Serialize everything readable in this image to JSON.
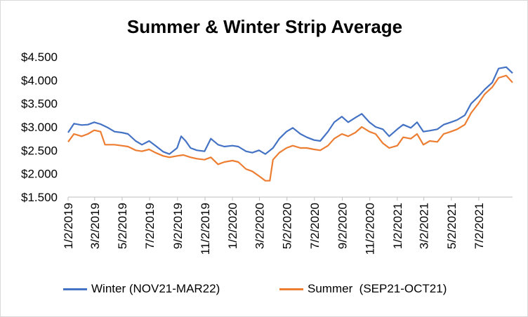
{
  "chart_data": {
    "type": "line",
    "title": "Summer & Winter Strip Average",
    "xlabel": "",
    "ylabel": "",
    "ylim": [
      1.5,
      4.5
    ],
    "yticks": [
      "$1.500",
      "$2.000",
      "$2.500",
      "$3.000",
      "$3.500",
      "$4.000",
      "$4.500"
    ],
    "xlim": [
      "2019-01-02",
      "2021-09-15"
    ],
    "xticks": [
      "1/2/2019",
      "3/2/2019",
      "5/2/2019",
      "7/2/2019",
      "9/2/2019",
      "11/2/2019",
      "1/2/2020",
      "3/2/2020",
      "5/2/2020",
      "7/2/2020",
      "9/2/2020",
      "11/2/2020",
      "1/2/2021",
      "3/2/2021",
      "5/2/2021",
      "7/2/2021"
    ],
    "grid": false,
    "legend_position": "bottom",
    "series": [
      {
        "name": "Winter (NOV21-MAR22)",
        "color": "#4472C4",
        "points": [
          [
            "2019-01-02",
            2.88
          ],
          [
            "2019-01-15",
            3.07
          ],
          [
            "2019-02-01",
            3.04
          ],
          [
            "2019-02-15",
            3.05
          ],
          [
            "2019-03-01",
            3.1
          ],
          [
            "2019-03-15",
            3.06
          ],
          [
            "2019-04-01",
            2.98
          ],
          [
            "2019-04-15",
            2.9
          ],
          [
            "2019-05-01",
            2.88
          ],
          [
            "2019-05-15",
            2.85
          ],
          [
            "2019-06-01",
            2.7
          ],
          [
            "2019-06-15",
            2.62
          ],
          [
            "2019-07-01",
            2.7
          ],
          [
            "2019-07-15",
            2.6
          ],
          [
            "2019-08-01",
            2.47
          ],
          [
            "2019-08-15",
            2.42
          ],
          [
            "2019-09-01",
            2.55
          ],
          [
            "2019-09-10",
            2.8
          ],
          [
            "2019-09-20",
            2.7
          ],
          [
            "2019-10-01",
            2.55
          ],
          [
            "2019-10-15",
            2.5
          ],
          [
            "2019-11-01",
            2.48
          ],
          [
            "2019-11-15",
            2.75
          ],
          [
            "2019-12-01",
            2.62
          ],
          [
            "2019-12-15",
            2.58
          ],
          [
            "2020-01-02",
            2.6
          ],
          [
            "2020-01-15",
            2.58
          ],
          [
            "2020-02-01",
            2.48
          ],
          [
            "2020-02-15",
            2.45
          ],
          [
            "2020-03-01",
            2.5
          ],
          [
            "2020-03-15",
            2.42
          ],
          [
            "2020-04-01",
            2.55
          ],
          [
            "2020-04-15",
            2.75
          ],
          [
            "2020-05-01",
            2.9
          ],
          [
            "2020-05-15",
            2.98
          ],
          [
            "2020-06-01",
            2.85
          ],
          [
            "2020-06-15",
            2.78
          ],
          [
            "2020-07-01",
            2.72
          ],
          [
            "2020-07-15",
            2.7
          ],
          [
            "2020-08-01",
            2.9
          ],
          [
            "2020-08-15",
            3.1
          ],
          [
            "2020-09-01",
            3.22
          ],
          [
            "2020-09-15",
            3.1
          ],
          [
            "2020-10-01",
            3.2
          ],
          [
            "2020-10-15",
            3.28
          ],
          [
            "2020-11-01",
            3.1
          ],
          [
            "2020-11-15",
            3.0
          ],
          [
            "2020-12-01",
            2.95
          ],
          [
            "2020-12-15",
            2.8
          ],
          [
            "2021-01-02",
            2.95
          ],
          [
            "2021-01-15",
            3.05
          ],
          [
            "2021-02-01",
            2.98
          ],
          [
            "2021-02-15",
            3.1
          ],
          [
            "2021-03-01",
            2.9
          ],
          [
            "2021-03-15",
            2.92
          ],
          [
            "2021-04-01",
            2.95
          ],
          [
            "2021-04-15",
            3.05
          ],
          [
            "2021-05-01",
            3.1
          ],
          [
            "2021-05-15",
            3.15
          ],
          [
            "2021-06-01",
            3.25
          ],
          [
            "2021-06-15",
            3.5
          ],
          [
            "2021-07-01",
            3.65
          ],
          [
            "2021-07-15",
            3.8
          ],
          [
            "2021-08-01",
            3.95
          ],
          [
            "2021-08-15",
            4.25
          ],
          [
            "2021-09-01",
            4.28
          ],
          [
            "2021-09-15",
            4.15
          ]
        ]
      },
      {
        "name": "Summer  (SEP21-OCT21)",
        "color": "#ED7D31",
        "points": [
          [
            "2019-01-02",
            2.68
          ],
          [
            "2019-01-15",
            2.85
          ],
          [
            "2019-02-01",
            2.8
          ],
          [
            "2019-02-15",
            2.85
          ],
          [
            "2019-03-01",
            2.93
          ],
          [
            "2019-03-15",
            2.9
          ],
          [
            "2019-03-25",
            2.62
          ],
          [
            "2019-04-15",
            2.62
          ],
          [
            "2019-05-01",
            2.6
          ],
          [
            "2019-05-15",
            2.58
          ],
          [
            "2019-06-01",
            2.5
          ],
          [
            "2019-06-15",
            2.48
          ],
          [
            "2019-07-01",
            2.52
          ],
          [
            "2019-07-15",
            2.45
          ],
          [
            "2019-08-01",
            2.38
          ],
          [
            "2019-08-15",
            2.35
          ],
          [
            "2019-09-01",
            2.38
          ],
          [
            "2019-09-15",
            2.4
          ],
          [
            "2019-10-01",
            2.35
          ],
          [
            "2019-10-15",
            2.32
          ],
          [
            "2019-11-01",
            2.3
          ],
          [
            "2019-11-15",
            2.35
          ],
          [
            "2019-12-01",
            2.2
          ],
          [
            "2019-12-15",
            2.25
          ],
          [
            "2020-01-02",
            2.28
          ],
          [
            "2020-01-15",
            2.25
          ],
          [
            "2020-02-01",
            2.1
          ],
          [
            "2020-02-15",
            2.05
          ],
          [
            "2020-03-01",
            1.95
          ],
          [
            "2020-03-15",
            1.85
          ],
          [
            "2020-03-25",
            1.85
          ],
          [
            "2020-04-01",
            2.3
          ],
          [
            "2020-04-15",
            2.45
          ],
          [
            "2020-05-01",
            2.55
          ],
          [
            "2020-05-15",
            2.6
          ],
          [
            "2020-06-01",
            2.55
          ],
          [
            "2020-06-15",
            2.55
          ],
          [
            "2020-07-01",
            2.52
          ],
          [
            "2020-07-15",
            2.5
          ],
          [
            "2020-08-01",
            2.6
          ],
          [
            "2020-08-15",
            2.75
          ],
          [
            "2020-09-01",
            2.85
          ],
          [
            "2020-09-15",
            2.8
          ],
          [
            "2020-10-01",
            2.88
          ],
          [
            "2020-10-15",
            3.0
          ],
          [
            "2020-11-01",
            2.9
          ],
          [
            "2020-11-15",
            2.85
          ],
          [
            "2020-12-01",
            2.65
          ],
          [
            "2020-12-15",
            2.55
          ],
          [
            "2021-01-02",
            2.6
          ],
          [
            "2021-01-15",
            2.78
          ],
          [
            "2021-02-01",
            2.75
          ],
          [
            "2021-02-15",
            2.85
          ],
          [
            "2021-03-01",
            2.62
          ],
          [
            "2021-03-15",
            2.7
          ],
          [
            "2021-04-01",
            2.68
          ],
          [
            "2021-04-15",
            2.85
          ],
          [
            "2021-05-01",
            2.9
          ],
          [
            "2021-05-15",
            2.95
          ],
          [
            "2021-06-01",
            3.05
          ],
          [
            "2021-06-15",
            3.3
          ],
          [
            "2021-07-01",
            3.5
          ],
          [
            "2021-07-15",
            3.7
          ],
          [
            "2021-08-01",
            3.85
          ],
          [
            "2021-08-15",
            4.05
          ],
          [
            "2021-09-01",
            4.1
          ],
          [
            "2021-09-15",
            3.95
          ]
        ]
      }
    ]
  }
}
